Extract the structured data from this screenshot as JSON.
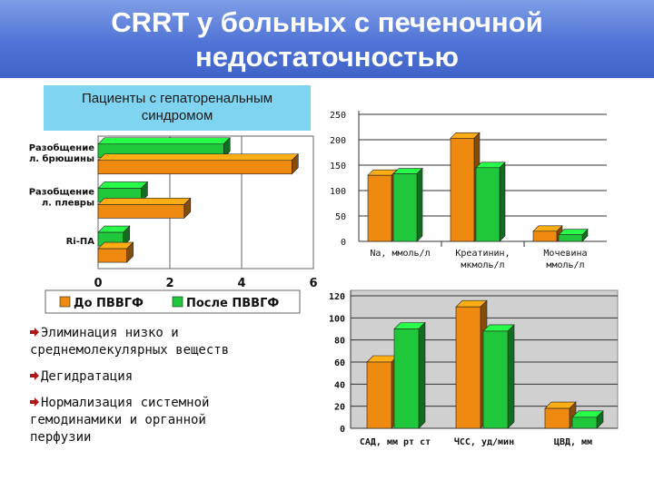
{
  "title": {
    "line1": "CRRT у больных с печеночной",
    "line2": "недостаточностью"
  },
  "subtitle": {
    "line1": "Пациенты с гепаторенальным",
    "line2": "синдромом"
  },
  "colors": {
    "before": "#ee8a10",
    "after": "#1fc83a"
  },
  "icons": {
    "bullet": "arrow-bullet-icon"
  },
  "bullets": [
    {
      "lines": [
        "Элиминация низко и",
        "среднемолекулярных веществ"
      ]
    },
    {
      "lines": [
        "Дегидратация"
      ]
    },
    {
      "lines": [
        "Нормализация системной",
        "гемодинамики и органной",
        "перфузии"
      ]
    }
  ],
  "chart_data": [
    {
      "type": "bar",
      "orientation": "horizontal",
      "categories": [
        "Разобщение л. брюшины",
        "Разобщение л. плевры",
        "Ri-ПА"
      ],
      "category_lines": [
        [
          "Разобщение",
          "л. брюшины"
        ],
        [
          "Разобщение",
          "л. плевры"
        ],
        [
          "Ri-ПА"
        ]
      ],
      "series": [
        {
          "name": "До ПВВГФ",
          "values": [
            5.4,
            2.4,
            0.8
          ]
        },
        {
          "name": "После ПВВГФ",
          "values": [
            3.5,
            1.2,
            0.7
          ]
        }
      ],
      "xlim": [
        0,
        6
      ],
      "xticks": [
        "0",
        "2",
        "4",
        "6"
      ],
      "grid": true,
      "legend": "bottom"
    },
    {
      "type": "bar",
      "categories": [
        "Na, ммоль/л",
        "Креатинин, мкмоль/л",
        "Мочевина ммоль/л"
      ],
      "category_lines": [
        [
          "Na, ммоль/л"
        ],
        [
          "Креатинин,",
          "мкмоль/л"
        ],
        [
          "Мочевина",
          "ммоль/л"
        ]
      ],
      "series": [
        {
          "name": "До ПВВГФ",
          "values": [
            130,
            203,
            20
          ]
        },
        {
          "name": "После ПВВГФ",
          "values": [
            133,
            145,
            13
          ]
        }
      ],
      "ylim": [
        0,
        250
      ],
      "yticks": [
        "0",
        "50",
        "100",
        "150",
        "200",
        "250"
      ],
      "grid": true
    },
    {
      "type": "bar",
      "categories": [
        "САД, мм рт ст",
        "ЧСС, уд/мин",
        "ЦВД, мм"
      ],
      "category_lines": [
        [
          "САД, мм рт ст"
        ],
        [
          "ЧСС, уд/мин"
        ],
        [
          "ЦВД, мм"
        ]
      ],
      "series": [
        {
          "name": "До ПВВГФ",
          "values": [
            60,
            110,
            18
          ]
        },
        {
          "name": "После ПВВГФ",
          "values": [
            90,
            88,
            10
          ]
        }
      ],
      "ylim": [
        0,
        120
      ],
      "yticks": [
        "0",
        "20",
        "40",
        "60",
        "80",
        "100",
        "120"
      ],
      "grid": true
    }
  ]
}
